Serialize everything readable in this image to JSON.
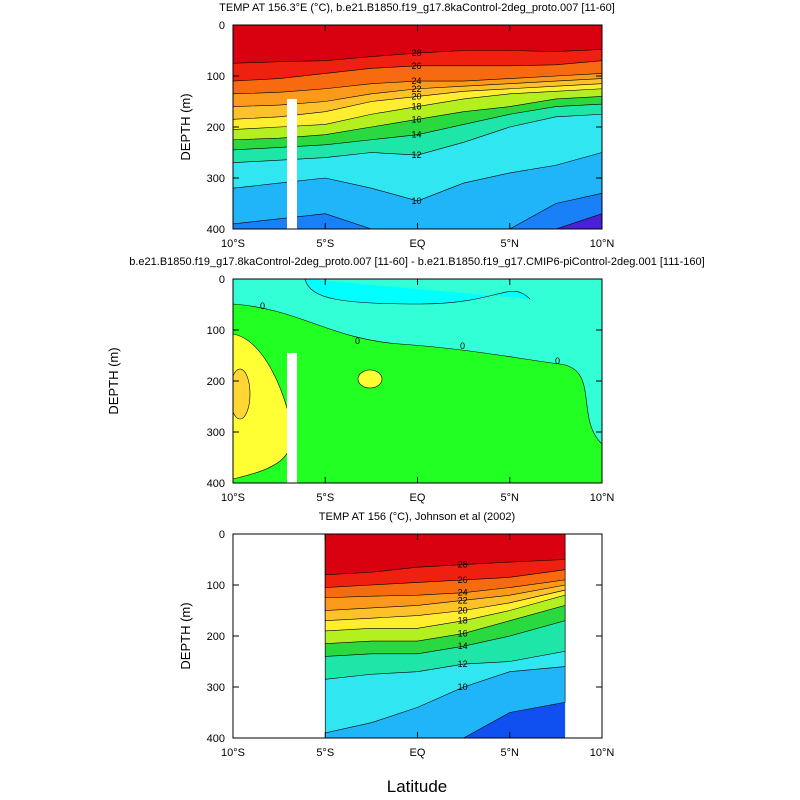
{
  "chart_data": [
    {
      "type": "heatmap",
      "subtype": "contour",
      "title": "TEMP AT 156.3°E (°C), b.e21.B1850.f19_g17.8kaControl-2deg_proto.007 [11-60]",
      "ylabel": "DEPTH (m)",
      "xlabel": "",
      "ylim": [
        400,
        0
      ],
      "xlim": [
        -10,
        10
      ],
      "x_ticks": [
        "10°S",
        "5°S",
        "EQ",
        "5°N",
        "10°N"
      ],
      "y_ticks": [
        "0",
        "100",
        "200",
        "300",
        "400"
      ],
      "lat": [
        -10,
        -7.5,
        -5,
        -2.5,
        0,
        2.5,
        5,
        7.5,
        10
      ],
      "isotherms": [
        {
          "level": 28,
          "depth": [
            75,
            72,
            70,
            62,
            55,
            50,
            50,
            52,
            48
          ]
        },
        {
          "level": 26,
          "depth": [
            110,
            105,
            95,
            85,
            80,
            80,
            80,
            78,
            70
          ]
        },
        {
          "level": 24,
          "depth": [
            135,
            132,
            125,
            115,
            110,
            110,
            105,
            100,
            95
          ]
        },
        {
          "level": 22,
          "depth": [
            160,
            157,
            150,
            135,
            125,
            120,
            115,
            110,
            105
          ]
        },
        {
          "level": 20,
          "depth": [
            185,
            180,
            170,
            150,
            140,
            130,
            125,
            120,
            115
          ]
        },
        {
          "level": 18,
          "depth": [
            205,
            200,
            195,
            175,
            160,
            145,
            135,
            130,
            125
          ]
        },
        {
          "level": 16,
          "depth": [
            225,
            222,
            215,
            200,
            185,
            170,
            160,
            145,
            140
          ]
        },
        {
          "level": 14,
          "depth": [
            245,
            240,
            235,
            225,
            215,
            195,
            175,
            160,
            155
          ]
        },
        {
          "level": 12,
          "depth": [
            270,
            265,
            260,
            250,
            255,
            230,
            200,
            180,
            175
          ]
        },
        {
          "level": 10,
          "depth": [
            320,
            310,
            300,
            320,
            345,
            310,
            290,
            275,
            250
          ]
        },
        {
          "level": 8,
          "depth": [
            390,
            380,
            370,
            400,
            420,
            420,
            400,
            350,
            330
          ]
        },
        {
          "level": 6,
          "depth": [
            500,
            500,
            500,
            500,
            500,
            500,
            450,
            400,
            370
          ]
        }
      ]
    },
    {
      "type": "heatmap",
      "subtype": "contour",
      "title": "b.e21.B1850.f19_g17.8kaControl-2deg_proto.007 [11-60] - b.e21.B1850.f19_g17.CMIP6-piControl-2deg.001 [111-160]",
      "ylabel": "DEPTH (m)",
      "xlabel": "",
      "ylim": [
        400,
        0
      ],
      "xlim": [
        -10,
        10
      ],
      "x_ticks": [
        "10°S",
        "5°S",
        "EQ",
        "5°N",
        "10°N"
      ],
      "y_ticks": [
        "0",
        "100",
        "200",
        "300",
        "400"
      ],
      "contour_labels": [
        "0",
        "0",
        "0",
        "0"
      ]
    },
    {
      "type": "heatmap",
      "subtype": "contour",
      "title": "TEMP AT 156 (°C), Johnson et al (2002)",
      "ylabel": "DEPTH (m)",
      "xlabel": "Latitude",
      "ylim": [
        400,
        0
      ],
      "xlim": [
        -10,
        10
      ],
      "data_xrange": [
        -5,
        8
      ],
      "x_ticks": [
        "10°S",
        "5°S",
        "EQ",
        "5°N",
        "10°N"
      ],
      "y_ticks": [
        "0",
        "100",
        "200",
        "300",
        "400"
      ],
      "lat": [
        -5,
        -2.5,
        0,
        2.5,
        5,
        8
      ],
      "isotherms": [
        {
          "level": 28,
          "depth": [
            80,
            75,
            65,
            60,
            55,
            50
          ]
        },
        {
          "level": 26,
          "depth": [
            105,
            100,
            95,
            90,
            85,
            70
          ]
        },
        {
          "level": 24,
          "depth": [
            125,
            122,
            120,
            115,
            105,
            90
          ]
        },
        {
          "level": 22,
          "depth": [
            150,
            145,
            140,
            130,
            120,
            100
          ]
        },
        {
          "level": 20,
          "depth": [
            170,
            165,
            160,
            150,
            135,
            110
          ]
        },
        {
          "level": 18,
          "depth": [
            190,
            185,
            185,
            170,
            150,
            120
          ]
        },
        {
          "level": 16,
          "depth": [
            215,
            210,
            210,
            195,
            170,
            140
          ]
        },
        {
          "level": 14,
          "depth": [
            240,
            235,
            235,
            220,
            200,
            170
          ]
        },
        {
          "level": 12,
          "depth": [
            285,
            275,
            270,
            255,
            250,
            230
          ]
        },
        {
          "level": 10,
          "depth": [
            390,
            370,
            340,
            300,
            270,
            260
          ]
        },
        {
          "level": 8,
          "depth": [
            500,
            500,
            480,
            400,
            350,
            330
          ]
        }
      ]
    }
  ]
}
